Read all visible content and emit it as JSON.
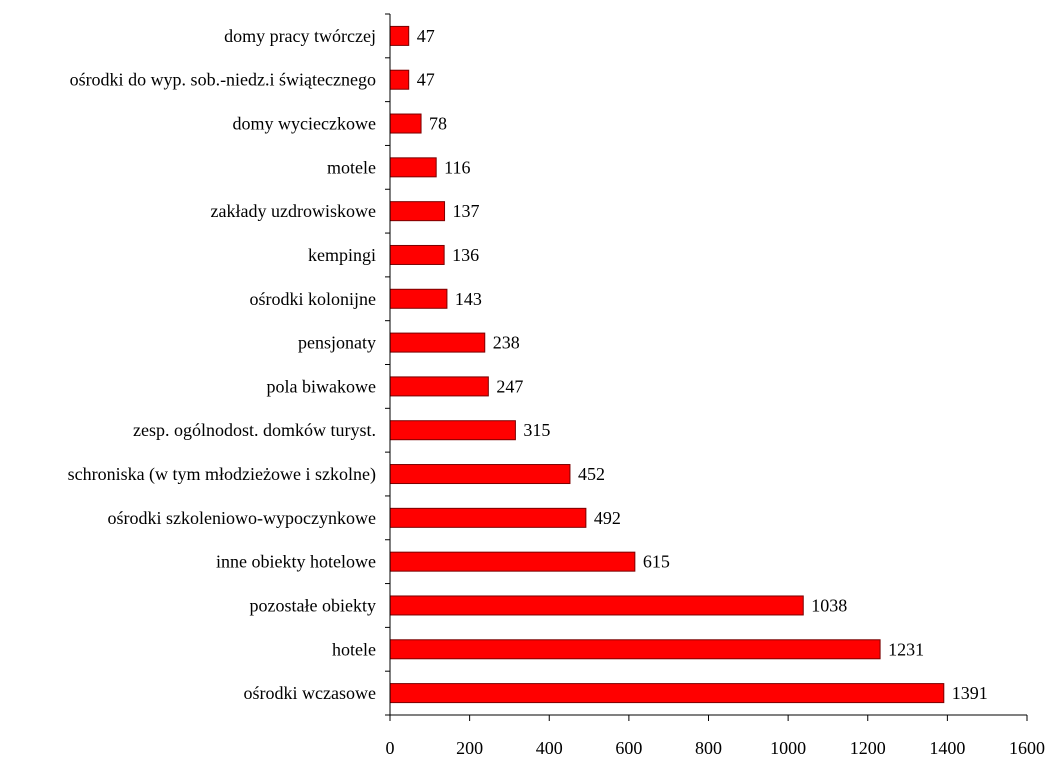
{
  "chart_data": {
    "type": "bar",
    "orientation": "horizontal",
    "categories": [
      "domy pracy twórczej",
      "ośrodki do wyp. sob.-niedz.i świątecznego",
      "domy wycieczkowe",
      "motele",
      "zakłady uzdrowiskowe",
      "kempingi",
      "ośrodki kolonijne",
      "pensjonaty",
      "pola biwakowe",
      "zesp. ogólnodost. domków turyst.",
      "schroniska (w tym młodzieżowe i szkolne)",
      "ośrodki szkoleniowo-wypoczynkowe",
      "inne obiekty hotelowe",
      "pozostałe obiekty",
      "hotele",
      "ośrodki wczasowe"
    ],
    "values": [
      47,
      47,
      78,
      116,
      137,
      136,
      143,
      238,
      247,
      315,
      452,
      492,
      615,
      1038,
      1231,
      1391
    ],
    "data_labels": [
      "47",
      "47",
      "78",
      "116",
      "137",
      "136",
      "143",
      "238",
      "247",
      "315",
      "452",
      "492",
      "615",
      "1038",
      "1231",
      "1391"
    ],
    "xlim": [
      0,
      1600
    ],
    "xticks": [
      0,
      200,
      400,
      600,
      800,
      1000,
      1200,
      1400,
      1600
    ],
    "xtick_labels": [
      "0",
      "200",
      "400",
      "600",
      "800",
      "1000",
      "1200",
      "1400",
      "1600"
    ],
    "title": "",
    "xlabel": "",
    "ylabel": "",
    "grid": false,
    "legend": "none",
    "bar_color": "#ff0000",
    "bar_edge_color": "#7a0000"
  }
}
